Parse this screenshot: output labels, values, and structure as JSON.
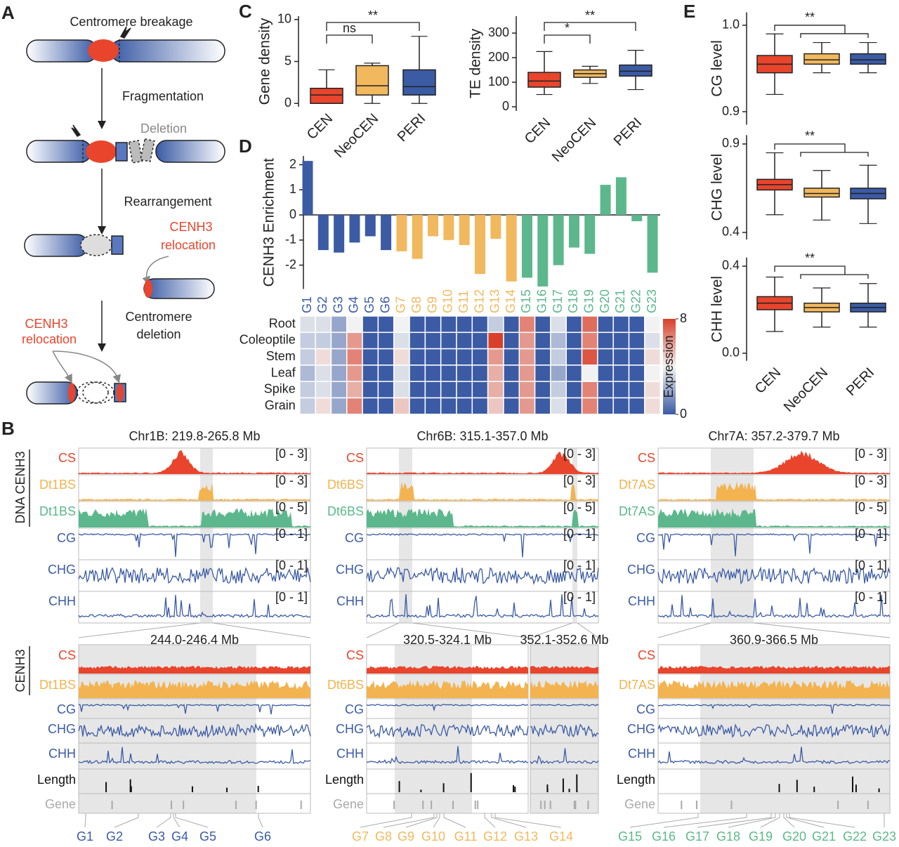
{
  "panel_labels": [
    "A",
    "B",
    "C",
    "D",
    "E"
  ],
  "panel_a": {
    "breakage": "Centromere breakage",
    "fragmentation": "Fragmentation",
    "deletion": "Deletion",
    "rearrangement": "Rearrangement",
    "relocation_1": [
      "CENH3",
      "relocation"
    ],
    "centromere_deletion": [
      "Centromere",
      "deletion"
    ],
    "relocation_2": [
      "CENH3",
      "relocation"
    ]
  },
  "chart_data": [
    {
      "type": "box",
      "ylabel": "Gene density",
      "categories": [
        "CEN",
        "NeoCEN",
        "PERI"
      ],
      "colors": [
        "#e8452c",
        "#f2b85e",
        "#3b5ba5"
      ],
      "boxes": [
        {
          "low": 0,
          "q1": 0,
          "median": 1,
          "q3": 1.8,
          "high": 4
        },
        {
          "low": 0,
          "q1": 1,
          "median": 2.1,
          "q3": 4.5,
          "high": 4.8
        },
        {
          "low": 0,
          "q1": 1,
          "median": 2,
          "q3": 4,
          "high": 8
        }
      ],
      "ylim": [
        -0.4,
        10.4
      ],
      "yticks": [
        0,
        5,
        10
      ],
      "comparisons": [
        {
          "label": "ns"
        },
        {
          "label": "**"
        }
      ]
    },
    {
      "type": "box",
      "ylabel": "TE density",
      "categories": [
        "CEN",
        "NeoCEN",
        "PERI"
      ],
      "colors": [
        "#e8452c",
        "#f2b85e",
        "#3b5ba5"
      ],
      "boxes": [
        {
          "low": 50,
          "q1": 80,
          "median": 105,
          "q3": 140,
          "high": 225
        },
        {
          "low": 95,
          "q1": 120,
          "median": 135,
          "q3": 150,
          "high": 165
        },
        {
          "low": 70,
          "q1": 125,
          "median": 145,
          "q3": 170,
          "high": 230
        }
      ],
      "ylim": [
        -17,
        369
      ],
      "yticks": [
        0,
        100,
        200,
        300
      ],
      "comparisons": [
        {
          "label": "*"
        },
        {
          "label": "**"
        }
      ]
    },
    {
      "type": "bar",
      "ylabel": "CENH3 Enrichment",
      "categories": [
        "G1",
        "G2",
        "G3",
        "G4",
        "G5",
        "G6",
        "G7",
        "G8",
        "G9",
        "G10",
        "G11",
        "G12",
        "G13",
        "G14",
        "G15",
        "G16",
        "G17",
        "G18",
        "G19",
        "G20",
        "G21",
        "G22",
        "G23"
      ],
      "values": [
        2.15,
        -1.4,
        -1.5,
        -1.1,
        -0.85,
        -1.4,
        -1.45,
        -1.75,
        -0.85,
        -1.0,
        -1.2,
        -2.35,
        -0.95,
        -2.65,
        -2.5,
        -2.85,
        -2.0,
        -1.3,
        -1.55,
        1.2,
        1.5,
        -0.25,
        -2.3
      ],
      "colors": [
        "#3b5ba5",
        "#3b5ba5",
        "#3b5ba5",
        "#3b5ba5",
        "#3b5ba5",
        "#3b5ba5",
        "#f2b85e",
        "#f2b85e",
        "#f2b85e",
        "#f2b85e",
        "#f2b85e",
        "#f2b85e",
        "#f2b85e",
        "#f2b85e",
        "#5cb88c",
        "#5cb88c",
        "#5cb88c",
        "#5cb88c",
        "#5cb88c",
        "#5cb88c",
        "#5cb88c",
        "#5cb88c",
        "#5cb88c"
      ],
      "ylim": [
        -2.95,
        2.35
      ],
      "yticks": [
        -2,
        -1,
        0,
        1,
        2
      ]
    },
    {
      "type": "heatmap",
      "rows": [
        "Root",
        "Coleoptile",
        "Stem",
        "Leaf",
        "Spike",
        "Grain"
      ],
      "values": [
        [
          3.5,
          3.5,
          2,
          4,
          0,
          0,
          4,
          0,
          0,
          0,
          0,
          0,
          3,
          0,
          6.5,
          0,
          3.5,
          0,
          7,
          0,
          0,
          0,
          4
        ],
        [
          3,
          3,
          2,
          6,
          0,
          0,
          3.5,
          0,
          0,
          0,
          0,
          0,
          8,
          0,
          6,
          0,
          2.5,
          0,
          6.5,
          0,
          0,
          0,
          3.5
        ],
        [
          3,
          4.5,
          2,
          6.5,
          0,
          0,
          4.5,
          0,
          0,
          0,
          0,
          0,
          6,
          0,
          6,
          0,
          3,
          0,
          7.5,
          0,
          0,
          0,
          4.5
        ],
        [
          2.5,
          3.5,
          2,
          6,
          0,
          0,
          3.5,
          0,
          0,
          0,
          0,
          0,
          5.5,
          0,
          6,
          0,
          2,
          0,
          4,
          0,
          0,
          0,
          4
        ],
        [
          3,
          3.5,
          2,
          5.5,
          0,
          0,
          3.5,
          0,
          0,
          0,
          0,
          0,
          5.5,
          0,
          6,
          0,
          3,
          0,
          6.5,
          0,
          0,
          0,
          4.5
        ],
        [
          3,
          4.5,
          2,
          6.5,
          0,
          0,
          5,
          0,
          0,
          0,
          0,
          0,
          5,
          0,
          6,
          0,
          3.5,
          0,
          6.5,
          0,
          0,
          0,
          4.5
        ]
      ],
      "colormap": [
        "#3b5ba5",
        "#f2f2f2",
        "#d8402a"
      ],
      "clim": [
        0,
        8
      ],
      "colorbar_label": "Expression",
      "colorbar_ticks": [
        0,
        8
      ]
    },
    {
      "type": "box",
      "ylabel": "CG level",
      "colors": [
        "#e8452c",
        "#f2b85e",
        "#3b5ba5"
      ],
      "boxes": [
        {
          "low": 0.92,
          "q1": 0.945,
          "median": 0.955,
          "q3": 0.965,
          "high": 0.99
        },
        {
          "low": 0.945,
          "q1": 0.955,
          "median": 0.96,
          "q3": 0.967,
          "high": 0.98
        },
        {
          "low": 0.945,
          "q1": 0.955,
          "median": 0.96,
          "q3": 0.967,
          "high": 0.98
        }
      ],
      "ylim": [
        0.885,
        1.015
      ],
      "yticks": [
        0.9,
        {
          "value": 1,
          "label": "1.0"
        }
      ],
      "comparisons": [
        {
          "label": "**"
        }
      ]
    },
    {
      "type": "box",
      "ylabel": "CHG level",
      "colors": [
        "#e8452c",
        "#f2b85e",
        "#3b5ba5"
      ],
      "boxes": [
        {
          "low": 0.5,
          "q1": 0.64,
          "median": 0.67,
          "q3": 0.7,
          "high": 0.85
        },
        {
          "low": 0.47,
          "q1": 0.6,
          "median": 0.62,
          "q3": 0.65,
          "high": 0.75
        },
        {
          "low": 0.45,
          "q1": 0.59,
          "median": 0.62,
          "q3": 0.65,
          "high": 0.78
        }
      ],
      "ylim": [
        0.36,
        0.95
      ],
      "yticks": [
        0.4,
        0.9
      ],
      "comparisons": [
        {
          "label": "**"
        }
      ]
    },
    {
      "type": "box",
      "ylabel": "CHH level",
      "categories": [
        "CEN",
        "NeoCEN",
        "PERI"
      ],
      "colors": [
        "#e8452c",
        "#f2b85e",
        "#3b5ba5"
      ],
      "boxes": [
        {
          "low": 0.1,
          "q1": 0.2,
          "median": 0.23,
          "q3": 0.26,
          "high": 0.35
        },
        {
          "low": 0.12,
          "q1": 0.19,
          "median": 0.21,
          "q3": 0.23,
          "high": 0.3
        },
        {
          "low": 0.12,
          "q1": 0.19,
          "median": 0.21,
          "q3": 0.23,
          "high": 0.32
        }
      ],
      "ylim": [
        -0.035,
        0.44
      ],
      "yticks": [
        {
          "value": 0,
          "label": "0.0"
        },
        0.4
      ],
      "comparisons": [
        {
          "label": "**"
        }
      ]
    }
  ],
  "panel_b": {
    "side_top": "DNA CENH3",
    "side_bottom": "CENH3",
    "columns": [
      {
        "title": "Chr1B: 219.8-265.8 Mb",
        "tracks": [
          "CS",
          "Dt1BS",
          "Dt1BS",
          "CG",
          "CHG",
          "CHH"
        ],
        "ranges": [
          "[0 - 3]",
          "[0 - 3]",
          "[0 - 5]",
          "[0 - 1]",
          "[0 - 1]",
          "[0 - 1]"
        ],
        "zoom_titles": [
          "244.0-246.4 Mb"
        ],
        "zoom_tracks": [
          "CS",
          "Dt1BS",
          "CG",
          "CHG",
          "CHH",
          "Length",
          "Gene"
        ]
      },
      {
        "title": "Chr6B: 315.1-357.0 Mb",
        "tracks": [
          "CS",
          "Dt6BS",
          "Dt6BS",
          "CG",
          "CHG",
          "CHH"
        ],
        "ranges": [
          "[0 - 3]",
          "[0 - 3]",
          "[0 - 5]",
          "[0 - 1]",
          "[0 - 1]",
          "[0 - 1]"
        ],
        "zoom_titles": [
          "320.5-324.1 Mb",
          "352.1-352.6 Mb"
        ],
        "zoom_tracks": [
          "CS",
          "Dt6BS",
          "CG",
          "CHG",
          "CHH",
          "Length",
          "Gene"
        ]
      },
      {
        "title": "Chr7A: 357.2-379.7 Mb",
        "tracks": [
          "CS",
          "Dt7AS",
          "Dt7AS",
          "CG",
          "CHG",
          "CHH"
        ],
        "ranges": [
          "[0 - 3]",
          "[0 - 3]",
          "[0 - 5]",
          "[0 - 1]",
          "[0 - 1]",
          "[0 - 1]"
        ],
        "zoom_titles": [
          "360.9-366.5 Mb"
        ],
        "zoom_tracks": [
          "CS",
          "Dt7AS",
          "CG",
          "CHG",
          "CHH",
          "Length",
          "Gene"
        ]
      }
    ]
  }
}
